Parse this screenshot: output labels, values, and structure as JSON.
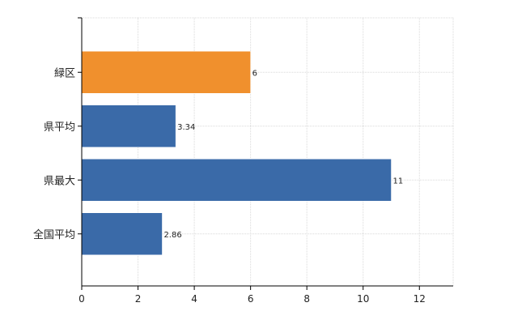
{
  "chart_data": {
    "type": "bar",
    "orientation": "horizontal",
    "categories": [
      "緑区",
      "県平均",
      "県最大",
      "全国平均"
    ],
    "values": [
      6,
      3.34,
      11,
      2.86
    ],
    "data_labels": [
      "6",
      "3.34",
      "11",
      "2.86"
    ],
    "colors": [
      "#f0902d",
      "#3a6aa8",
      "#3a6aa8",
      "#3a6aa8"
    ],
    "xlim": [
      0,
      13.2
    ],
    "xticks": [
      0,
      2,
      4,
      6,
      8,
      10,
      12
    ],
    "grid": true,
    "title": "",
    "xlabel": "",
    "ylabel": ""
  }
}
